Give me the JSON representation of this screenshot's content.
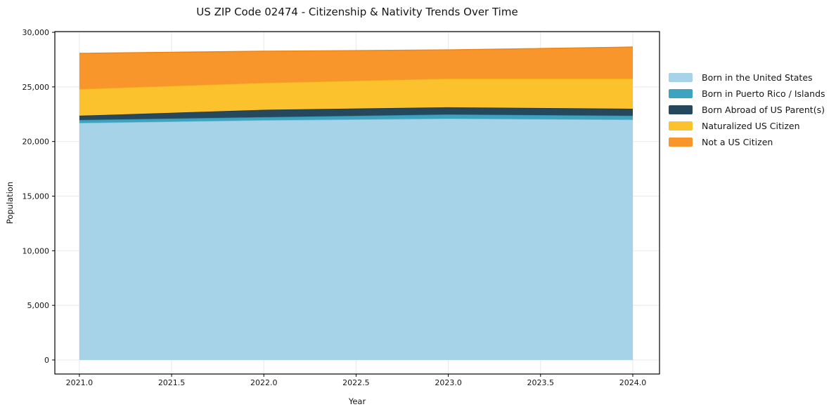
{
  "title": "US ZIP Code 02474 - Citizenship & Nativity Trends Over Time",
  "chart_data": {
    "type": "area",
    "stacked": true,
    "x": [
      2021,
      2022,
      2023,
      2024
    ],
    "series": [
      {
        "name": "Born in the United States",
        "values": [
          21700,
          21950,
          22100,
          22000
        ],
        "fill": "#A6D3E8",
        "edge": "#82BCD9"
      },
      {
        "name": "Born in Puerto Rico / Islands",
        "values": [
          270,
          280,
          380,
          360
        ],
        "fill": "#3DA4C0",
        "edge": "#2F8FA9"
      },
      {
        "name": "Born Abroad of US Parent(s)",
        "values": [
          390,
          670,
          650,
          640
        ],
        "fill": "#26485C",
        "edge": "#1B3748"
      },
      {
        "name": "Naturalized US Citizen",
        "values": [
          2440,
          2475,
          2630,
          2760
        ],
        "fill": "#FCC22D",
        "edge": "#F2B013"
      },
      {
        "name": "Not a US Citizen",
        "values": [
          3270,
          2890,
          2630,
          2890
        ],
        "fill": "#F8952B",
        "edge": "#EC8414"
      }
    ],
    "xlabel": "Year",
    "ylabel": "Population",
    "xlim": [
      2020.867,
      2024.145
    ],
    "ylim": [
      -1285,
      30064
    ],
    "xticks": {
      "values": [
        2021.0,
        2021.5,
        2022.0,
        2022.5,
        2023.0,
        2023.5,
        2024.0
      ],
      "labels": [
        "2021.0",
        "2021.5",
        "2022.0",
        "2022.5",
        "2023.0",
        "2023.5",
        "2024.0"
      ]
    },
    "yticks": {
      "values": [
        0,
        5000,
        10000,
        15000,
        20000,
        25000,
        30000
      ],
      "labels": [
        "0",
        "5,000",
        "10,000",
        "15,000",
        "20,000",
        "25,000",
        "30,000"
      ]
    },
    "grid": true,
    "legend_position": "right"
  },
  "colors": {
    "background": "#ffffff",
    "grid": "#e8e8e8",
    "spine": "#000000",
    "tick_text": "#151515"
  }
}
